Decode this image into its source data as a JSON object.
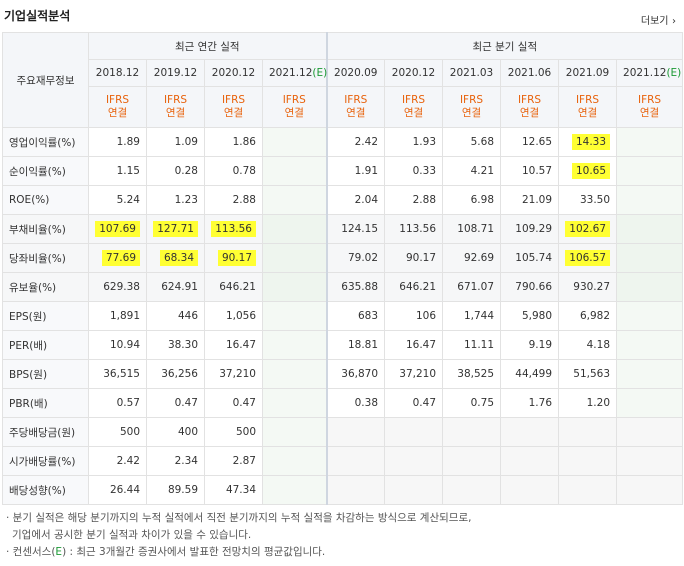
{
  "title": "기업실적분석",
  "more_link": "더보기",
  "header": {
    "row_label": "주요재무정보",
    "annual_group": "최근 연간 실적",
    "quarter_group": "최근 분기 실적",
    "annual_periods": [
      "2018.12",
      "2019.12",
      "2020.12",
      "2021.12"
    ],
    "quarter_periods": [
      "2020.09",
      "2020.12",
      "2021.03",
      "2021.06",
      "2021.09",
      "2021.12"
    ],
    "est_mark": "(E)",
    "ifrs": "IFRS",
    "basis": "연결"
  },
  "rows": [
    {
      "label": "영업이익률(%)",
      "annual": [
        "1.89",
        "1.09",
        "1.86",
        ""
      ],
      "quarter": [
        "2.42",
        "1.93",
        "5.68",
        "12.65",
        "14.33",
        ""
      ]
    },
    {
      "label": "순이익률(%)",
      "annual": [
        "1.15",
        "0.28",
        "0.78",
        ""
      ],
      "quarter": [
        "1.91",
        "0.33",
        "4.21",
        "10.57",
        "10.65",
        ""
      ]
    },
    {
      "label": "ROE(%)",
      "annual": [
        "5.24",
        "1.23",
        "2.88",
        ""
      ],
      "quarter": [
        "2.04",
        "2.88",
        "6.98",
        "21.09",
        "33.50",
        ""
      ]
    },
    {
      "label": "부채비율(%)",
      "annual": [
        "107.69",
        "127.71",
        "113.56",
        ""
      ],
      "quarter": [
        "124.15",
        "113.56",
        "108.71",
        "109.29",
        "102.67",
        ""
      ]
    },
    {
      "label": "당좌비율(%)",
      "annual": [
        "77.69",
        "68.34",
        "90.17",
        ""
      ],
      "quarter": [
        "79.02",
        "90.17",
        "92.69",
        "105.74",
        "106.57",
        ""
      ]
    },
    {
      "label": "유보율(%)",
      "annual": [
        "629.38",
        "624.91",
        "646.21",
        ""
      ],
      "quarter": [
        "635.88",
        "646.21",
        "671.07",
        "790.66",
        "930.27",
        ""
      ]
    },
    {
      "label": "EPS(원)",
      "annual": [
        "1,891",
        "446",
        "1,056",
        ""
      ],
      "quarter": [
        "683",
        "106",
        "1,744",
        "5,980",
        "6,982",
        ""
      ]
    },
    {
      "label": "PER(배)",
      "annual": [
        "10.94",
        "38.30",
        "16.47",
        ""
      ],
      "quarter": [
        "18.81",
        "16.47",
        "11.11",
        "9.19",
        "4.18",
        ""
      ]
    },
    {
      "label": "BPS(원)",
      "annual": [
        "36,515",
        "36,256",
        "37,210",
        ""
      ],
      "quarter": [
        "36,870",
        "37,210",
        "38,525",
        "44,499",
        "51,563",
        ""
      ]
    },
    {
      "label": "PBR(배)",
      "annual": [
        "0.57",
        "0.47",
        "0.47",
        ""
      ],
      "quarter": [
        "0.38",
        "0.47",
        "0.75",
        "1.76",
        "1.20",
        ""
      ]
    },
    {
      "label": "주당배당금(원)",
      "annual": [
        "500",
        "400",
        "500",
        ""
      ],
      "quarter": []
    },
    {
      "label": "시가배당률(%)",
      "annual": [
        "2.42",
        "2.34",
        "2.87",
        ""
      ],
      "quarter": []
    },
    {
      "label": "배당성향(%)",
      "annual": [
        "26.44",
        "89.59",
        "47.34",
        ""
      ],
      "quarter": []
    }
  ],
  "highlight_color": "#ffff33",
  "notes": {
    "line1": "· 분기 실적은 해당 분기까지의 누적 실적에서 직전 분기까지의 누적 실적을 차감하는 방식으로 계산되므로,",
    "line2": "기업에서 공시한 분기 실적과 차이가 있을 수 있습니다.",
    "line3_pre": "· 컨센서스(",
    "line3_e": "E",
    "line3_post": ") : 최근 3개월간 증권사에서 발표한 전망치의 평균값입니다."
  }
}
